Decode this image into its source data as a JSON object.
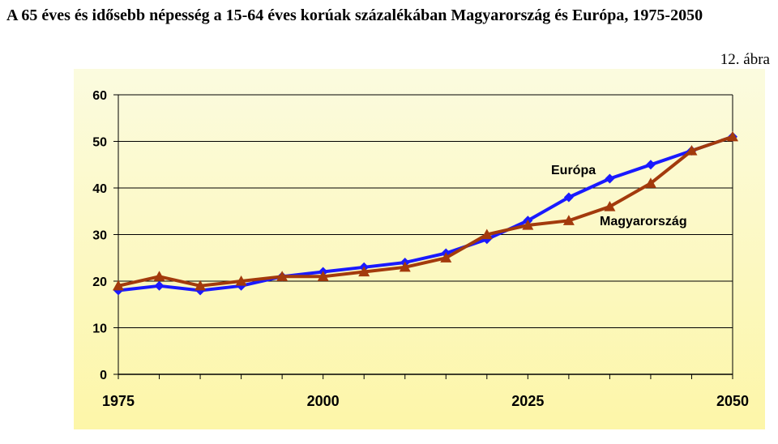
{
  "page": {
    "title": "A 65 éves és idősebb népesség a 15-64 éves korúak százalékában Magyarország és Európa, 1975-2050",
    "figure_label": "12. ábra"
  },
  "chart_data": {
    "type": "line",
    "title": "",
    "xlabel": "",
    "ylabel": "",
    "x": [
      1975,
      1980,
      1985,
      1990,
      1995,
      2000,
      2005,
      2010,
      2015,
      2020,
      2025,
      2030,
      2035,
      2040,
      2045,
      2050
    ],
    "xticks": [
      1975,
      2000,
      2025,
      2050
    ],
    "ylim": [
      0,
      60
    ],
    "yticks": [
      0,
      10,
      20,
      30,
      40,
      50,
      60
    ],
    "grid": "horizontal",
    "series": [
      {
        "name": "Európa",
        "color": "#1a1aff",
        "marker": "diamond",
        "values": [
          18,
          19,
          18,
          19,
          21,
          22,
          23,
          24,
          26,
          29,
          33,
          38,
          42,
          45,
          48,
          51
        ]
      },
      {
        "name": "Magyarország",
        "color": "#a33a0c",
        "marker": "triangle",
        "values": [
          19,
          21,
          19,
          20,
          21,
          21,
          22,
          23,
          25,
          30,
          32,
          33,
          36,
          41,
          48,
          51
        ]
      }
    ]
  }
}
